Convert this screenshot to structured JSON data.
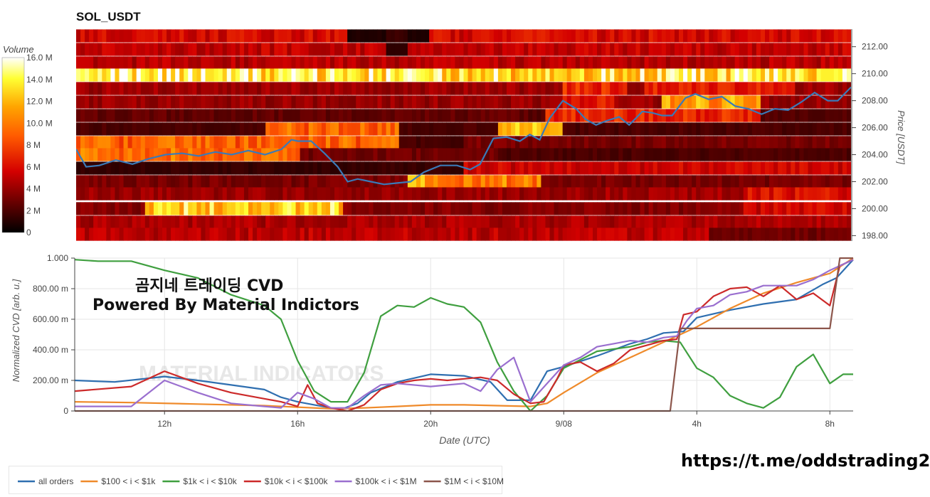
{
  "title": "SOL_USDT",
  "overlay": {
    "line1": "곰지네 트레이딩 CVD",
    "line2": "Powered By Material Indictors"
  },
  "link": "https://t.me/oddstrading2",
  "watermark": "MATERIAL INDICATORS",
  "colorbar": {
    "title": "Volume",
    "ticks": [
      "16.0 M",
      "14.0 M",
      "12.0 M",
      "10.0 M",
      "8 M",
      "6 M",
      "4 M",
      "2 M",
      "0"
    ]
  },
  "chart_data": [
    {
      "type": "heatmap",
      "title": "SOL_USDT",
      "ylabel": "Price [USDT]",
      "ylim": [
        197.6,
        213.3
      ],
      "y_ticks": [
        "212.00",
        "210.00",
        "208.00",
        "206.00",
        "204.00",
        "202.00",
        "200.00",
        "198.00"
      ],
      "x_range_hours": [
        9.3,
        32.7
      ],
      "colorscale": "volume heat (black-red-orange-yellow-white)",
      "zmax_millions": 16,
      "bands": [
        {
          "price": 212.8,
          "default": 5.8,
          "segments": [
            [
              17.5,
              20.0,
              0.8
            ],
            [
              18.7,
              19.3,
              1.5
            ]
          ]
        },
        {
          "price": 211.8,
          "default": 5.2,
          "segments": [
            [
              18.7,
              19.3,
              1.2
            ]
          ]
        },
        {
          "price": 210.8,
          "default": 4.8,
          "segments": []
        },
        {
          "price": 209.9,
          "default": 13.6,
          "segments": [
            [
              10.0,
              14.0,
              14.4
            ],
            [
              22.0,
              25.0,
              12.6
            ],
            [
              27.5,
              28.0,
              14.8
            ]
          ]
        },
        {
          "price": 208.9,
          "default": 4.2,
          "segments": [
            [
              24.0,
              26.0,
              7.0
            ],
            [
              26.5,
              31.0,
              6.5
            ]
          ]
        },
        {
          "price": 207.9,
          "default": 4.0,
          "segments": [
            [
              24.0,
              25.5,
              6.5
            ],
            [
              27.0,
              30.0,
              11.0
            ]
          ]
        },
        {
          "price": 206.9,
          "default": 2.2,
          "segments": [
            [
              9.3,
              23.0,
              2.6
            ],
            [
              23.5,
              30.0,
              7.0
            ]
          ]
        },
        {
          "price": 205.9,
          "default": 2.0,
          "segments": [
            [
              15.0,
              19.0,
              9.0
            ],
            [
              22.0,
              24.0,
              11.5
            ]
          ]
        },
        {
          "price": 204.9,
          "default": 3.2,
          "segments": [
            [
              9.3,
              19.0,
              9.0
            ],
            [
              19.0,
              21.0,
              1.8
            ]
          ]
        },
        {
          "price": 204.0,
          "default": 2.0,
          "segments": [
            [
              9.3,
              16.0,
              9.5
            ],
            [
              16.0,
              22.0,
              3.0
            ]
          ]
        },
        {
          "price": 203.0,
          "default": 5.5,
          "segments": [
            [
              9.3,
              18.0,
              1.4
            ],
            [
              18.0,
              21.0,
              1.5
            ],
            [
              26.0,
              32.7,
              5.6
            ]
          ]
        },
        {
          "price": 202.0,
          "default": 3.2,
          "segments": [
            [
              19.3,
              23.3,
              10.0
            ],
            [
              19.3,
              20.0,
              12.0
            ]
          ]
        },
        {
          "price": 201.1,
          "default": 4.0,
          "segments": [
            [
              25.0,
              32.7,
              4.3
            ],
            [
              29.5,
              32.7,
              6.0
            ]
          ]
        },
        {
          "price": 200.0,
          "default": 3.5,
          "segments": [
            [
              11.4,
              17.3,
              12.8
            ],
            [
              29.5,
              32.7,
              5.5
            ]
          ]
        },
        {
          "price": 199.0,
          "default": 4.5,
          "segments": []
        },
        {
          "price": 198.1,
          "default": 5.0,
          "segments": [
            [
              28.4,
              32.7,
              3.0
            ]
          ]
        }
      ],
      "series": [
        {
          "name": "Price",
          "color": "#3a7ab8",
          "x": [
            9.3,
            9.6,
            10.0,
            10.5,
            11.0,
            11.5,
            12.0,
            12.5,
            13.0,
            13.5,
            14.0,
            14.5,
            15.0,
            15.5,
            15.8,
            16.0,
            16.4,
            16.8,
            17.2,
            17.5,
            17.8,
            18.2,
            18.6,
            19.0,
            19.4,
            19.8,
            20.3,
            20.8,
            21.2,
            21.5,
            21.9,
            22.3,
            22.7,
            23.0,
            23.3,
            23.6,
            24.0,
            24.4,
            24.7,
            25.0,
            25.3,
            25.7,
            26.0,
            26.4,
            26.7,
            27.0,
            27.3,
            27.7,
            28.0,
            28.4,
            28.8,
            29.2,
            29.6,
            30.0,
            30.4,
            30.8,
            31.2,
            31.6,
            32.0,
            32.3,
            32.7
          ],
          "y": [
            204.4,
            203.1,
            203.2,
            203.6,
            203.3,
            203.7,
            204.0,
            204.1,
            203.9,
            204.2,
            204.0,
            204.3,
            204.0,
            204.4,
            205.1,
            205.0,
            205.0,
            204.1,
            203.1,
            202.0,
            202.2,
            202.0,
            201.8,
            201.9,
            202.0,
            202.7,
            203.2,
            203.2,
            202.9,
            203.3,
            205.2,
            205.3,
            205.0,
            205.5,
            205.1,
            206.7,
            208.0,
            207.4,
            206.6,
            206.2,
            206.5,
            206.8,
            206.2,
            207.2,
            207.1,
            206.9,
            206.9,
            208.2,
            208.5,
            208.1,
            208.3,
            207.6,
            207.4,
            207.0,
            207.4,
            207.3,
            207.9,
            208.6,
            208.0,
            208.0,
            209.0
          ]
        }
      ]
    },
    {
      "type": "line",
      "xlabel": "Date (UTC)",
      "ylabel": "Normalized CVD [arb. u.]",
      "ylim": [
        0,
        1
      ],
      "y_ticks": [
        "0",
        "200.00 m",
        "400.00 m",
        "600.00 m",
        "800.00 m",
        "1.000"
      ],
      "x_tick_labels": [
        "12h",
        "16h",
        "20h",
        "9/08",
        "4h",
        "8h"
      ],
      "x_range_hours": [
        9.3,
        32.7
      ],
      "grid": true,
      "legend": "bottom",
      "series": [
        {
          "name": "all orders",
          "color": "#2f6fb0",
          "x": [
            9.3,
            10.5,
            12.0,
            13.0,
            14.0,
            15.0,
            15.5,
            16.0,
            16.5,
            17.0,
            17.3,
            17.8,
            18.2,
            19.0,
            20.0,
            21.0,
            21.8,
            22.3,
            23.0,
            23.5,
            24.0,
            25.0,
            26.0,
            26.5,
            27.0,
            27.6,
            28.0,
            29.0,
            30.0,
            31.0,
            31.8,
            32.2,
            32.7
          ],
          "y": [
            0.2,
            0.19,
            0.225,
            0.2,
            0.17,
            0.14,
            0.09,
            0.06,
            0.04,
            0.02,
            0.01,
            0.05,
            0.12,
            0.19,
            0.24,
            0.23,
            0.19,
            0.07,
            0.07,
            0.26,
            0.29,
            0.36,
            0.44,
            0.47,
            0.51,
            0.52,
            0.61,
            0.66,
            0.7,
            0.73,
            0.83,
            0.87,
            0.99
          ]
        },
        {
          "name": "$100 < i < $1k",
          "color": "#ef8a2a",
          "x": [
            9.3,
            11.0,
            13.0,
            15.0,
            16.0,
            17.0,
            18.0,
            19.0,
            20.0,
            21.0,
            22.0,
            23.0,
            23.5,
            24.0,
            25.0,
            26.0,
            27.0,
            28.0,
            29.0,
            30.0,
            31.0,
            32.0,
            32.7
          ],
          "y": [
            0.06,
            0.055,
            0.045,
            0.035,
            0.025,
            0.015,
            0.02,
            0.03,
            0.04,
            0.04,
            0.035,
            0.03,
            0.05,
            0.12,
            0.25,
            0.35,
            0.45,
            0.55,
            0.67,
            0.77,
            0.84,
            0.9,
            1.0
          ]
        },
        {
          "name": "$1k < i < $10k",
          "color": "#3f9f3f",
          "x": [
            9.3,
            10.0,
            11.0,
            12.0,
            13.0,
            14.0,
            15.0,
            15.5,
            16.0,
            16.5,
            17.0,
            17.5,
            18.0,
            18.5,
            19.0,
            19.5,
            20.0,
            20.5,
            21.0,
            21.5,
            22.0,
            22.5,
            23.0,
            23.5,
            24.0,
            25.0,
            26.0,
            26.5,
            27.0,
            27.5,
            28.0,
            28.5,
            29.0,
            29.5,
            30.0,
            30.5,
            31.0,
            31.5,
            32.0,
            32.4,
            32.7
          ],
          "y": [
            0.99,
            0.98,
            0.98,
            0.92,
            0.87,
            0.76,
            0.69,
            0.6,
            0.33,
            0.13,
            0.06,
            0.06,
            0.25,
            0.62,
            0.69,
            0.68,
            0.74,
            0.7,
            0.68,
            0.58,
            0.32,
            0.13,
            0.0,
            0.1,
            0.28,
            0.39,
            0.42,
            0.45,
            0.46,
            0.45,
            0.28,
            0.22,
            0.1,
            0.05,
            0.02,
            0.09,
            0.29,
            0.37,
            0.18,
            0.24,
            0.24
          ]
        },
        {
          "name": "$10k < i < $100k",
          "color": "#cc2a2a",
          "x": [
            9.3,
            11.0,
            12.0,
            13.0,
            14.0,
            15.0,
            15.5,
            16.0,
            16.3,
            16.6,
            17.0,
            17.5,
            18.0,
            18.5,
            19.0,
            19.5,
            20.0,
            20.5,
            21.0,
            21.5,
            22.0,
            22.5,
            23.0,
            23.4,
            23.8,
            24.0,
            24.5,
            25.0,
            25.5,
            26.0,
            26.5,
            27.0,
            27.4,
            27.6,
            28.0,
            28.5,
            29.0,
            29.5,
            30.0,
            30.5,
            31.0,
            31.5,
            32.0,
            32.3,
            32.7
          ],
          "y": [
            0.13,
            0.16,
            0.26,
            0.18,
            0.12,
            0.08,
            0.06,
            0.03,
            0.17,
            0.05,
            0.02,
            0.0,
            0.04,
            0.14,
            0.18,
            0.2,
            0.21,
            0.2,
            0.21,
            0.22,
            0.2,
            0.11,
            0.05,
            0.06,
            0.21,
            0.3,
            0.32,
            0.26,
            0.31,
            0.4,
            0.43,
            0.46,
            0.47,
            0.63,
            0.65,
            0.75,
            0.8,
            0.81,
            0.75,
            0.82,
            0.73,
            0.77,
            0.69,
            0.95,
            0.99
          ]
        },
        {
          "name": "$100k < i < $1M",
          "color": "#9a6fcf",
          "x": [
            9.3,
            11.0,
            12.0,
            13.0,
            14.0,
            15.0,
            15.5,
            16.0,
            16.5,
            17.0,
            17.5,
            18.0,
            18.5,
            19.0,
            20.0,
            21.0,
            21.5,
            22.0,
            22.5,
            23.0,
            23.5,
            24.0,
            24.5,
            25.0,
            25.5,
            26.0,
            26.5,
            27.0,
            27.4,
            27.7,
            28.0,
            28.5,
            29.0,
            29.5,
            30.0,
            31.0,
            31.5,
            32.0,
            32.7
          ],
          "y": [
            0.03,
            0.03,
            0.2,
            0.12,
            0.05,
            0.03,
            0.02,
            0.12,
            0.08,
            0.02,
            0.02,
            0.1,
            0.17,
            0.18,
            0.16,
            0.18,
            0.13,
            0.27,
            0.35,
            0.06,
            0.18,
            0.3,
            0.35,
            0.42,
            0.44,
            0.46,
            0.45,
            0.48,
            0.49,
            0.59,
            0.67,
            0.69,
            0.76,
            0.78,
            0.82,
            0.82,
            0.86,
            0.92,
            0.99
          ]
        },
        {
          "name": "$1M < i < $10M",
          "color": "#8c564b",
          "x": [
            9.3,
            27.2,
            27.5,
            32.0,
            32.3,
            32.7
          ],
          "y": [
            0.0,
            0.0,
            0.54,
            0.54,
            1.0,
            1.0
          ]
        }
      ]
    }
  ]
}
